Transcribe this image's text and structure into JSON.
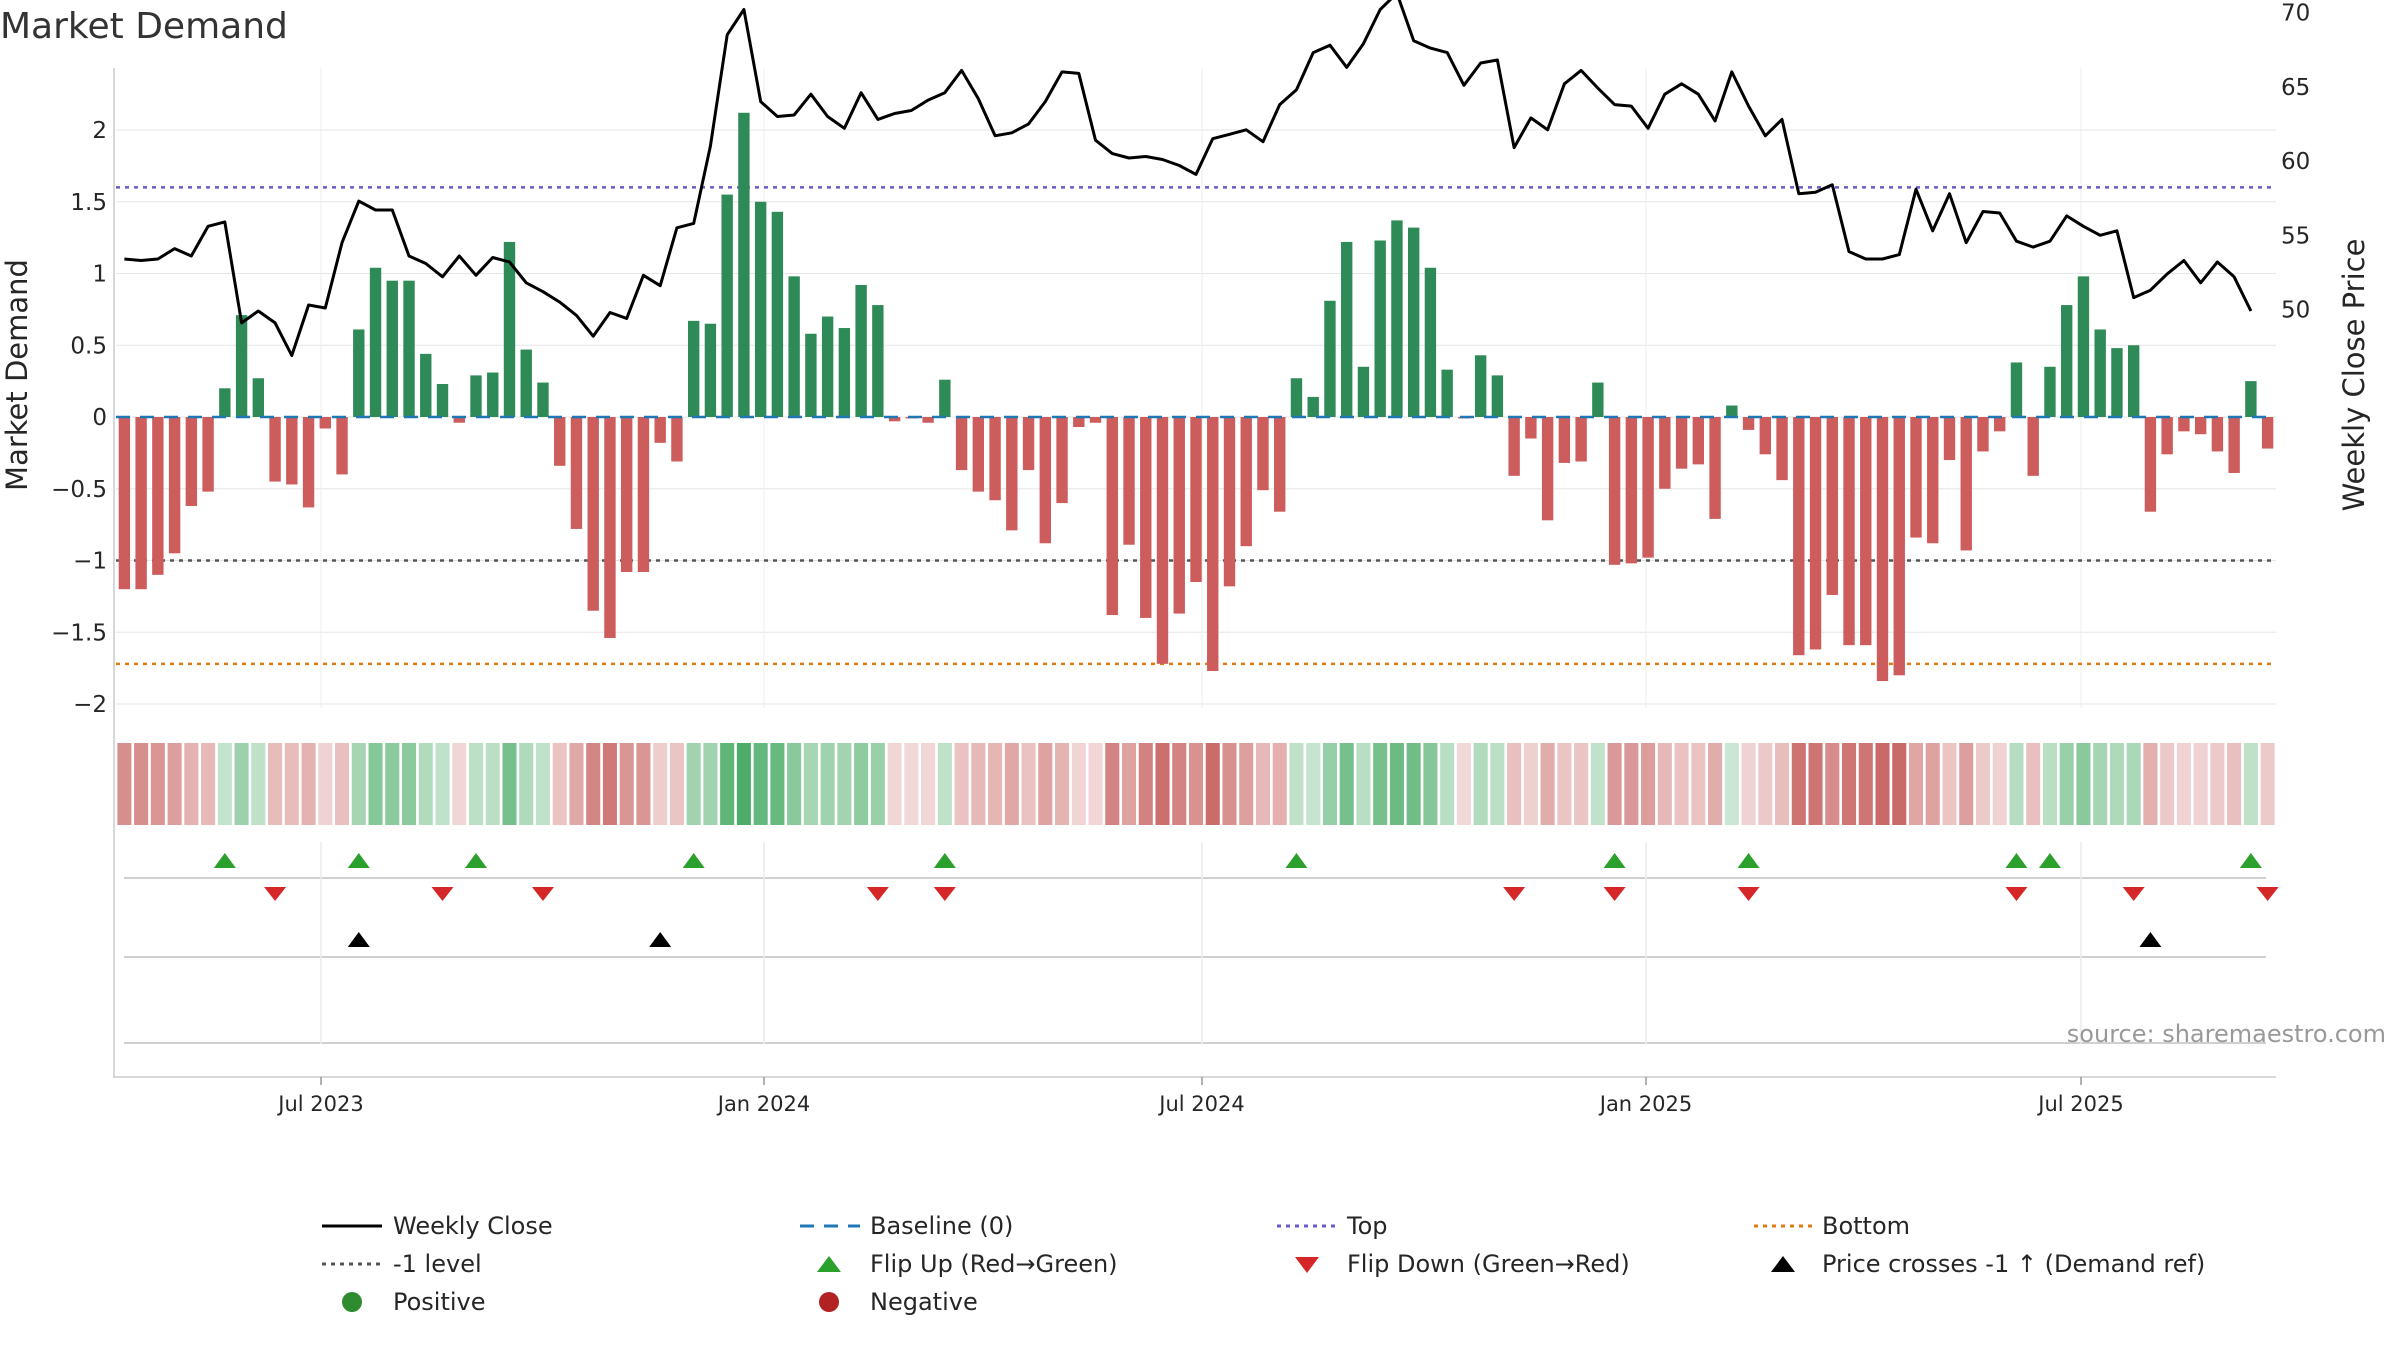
{
  "chart_data": {
    "type": "bar",
    "title": "Market Demand",
    "ylabel": "Market Demand",
    "y2label": "Weekly Close Price",
    "ylim": [
      -2.15,
      2.3
    ],
    "y2lim": [
      45.5,
      73.5
    ],
    "yticks": [
      "2",
      "1.5",
      "1",
      "0.5",
      "0",
      "−0.5",
      "−1",
      "−1.5",
      "−2"
    ],
    "y2ticks": [
      "70",
      "65",
      "60",
      "55",
      "50"
    ],
    "xticks": [
      "Jul 2023",
      "Jan 2024",
      "Jul 2024",
      "Jan 2025",
      "Jul 2025"
    ],
    "source": "source: sharemaestro.com",
    "colors": {
      "positive": "#2e8b57",
      "negative": "#cd5c5c",
      "close": "#000000",
      "baseline": "#1f77b4",
      "top": "#6a5acd",
      "minus1": "#555555",
      "bottom": "#e07b12",
      "flip_up": "#2ca02c",
      "flip_down": "#d62728",
      "cross": "#000000"
    },
    "reference_lines": {
      "top": 1.6,
      "minus1": -1.0,
      "bottom": -1.72
    },
    "demand": [
      -1.2,
      -1.2,
      -1.1,
      -0.95,
      -0.62,
      -0.52,
      0.2,
      0.71,
      0.27,
      -0.45,
      -0.47,
      -0.63,
      -0.08,
      -0.4,
      0.61,
      1.04,
      0.95,
      0.95,
      0.44,
      0.23,
      -0.04,
      0.29,
      0.31,
      1.22,
      0.47,
      0.24,
      -0.34,
      -0.78,
      -1.35,
      -1.54,
      -1.08,
      -1.08,
      -0.18,
      -0.31,
      0.67,
      0.65,
      1.55,
      2.12,
      1.5,
      1.43,
      0.98,
      0.58,
      0.7,
      0.62,
      0.92,
      0.78,
      -0.03,
      -0.01,
      -0.04,
      0.26,
      -0.37,
      -0.52,
      -0.58,
      -0.79,
      -0.37,
      -0.88,
      -0.6,
      -0.07,
      -0.04,
      -1.38,
      -0.89,
      -1.4,
      -1.72,
      -1.37,
      -1.15,
      -1.77,
      -1.18,
      -0.9,
      -0.51,
      -0.66,
      0.27,
      0.14,
      0.81,
      1.22,
      0.35,
      1.23,
      1.37,
      1.32,
      1.04,
      0.33,
      -0.01,
      0.43,
      0.29,
      -0.41,
      -0.15,
      -0.72,
      -0.32,
      -0.31,
      0.24,
      -1.03,
      -1.02,
      -0.98,
      -0.5,
      -0.36,
      -0.33,
      -0.71,
      0.08,
      -0.09,
      -0.26,
      -0.44,
      -1.66,
      -1.62,
      -1.24,
      -1.59,
      -1.59,
      -1.84,
      -1.8,
      -0.84,
      -0.88,
      -0.3,
      -0.93,
      -0.24,
      -0.1,
      0.38,
      -0.41,
      0.35,
      0.78,
      0.98,
      0.61,
      0.48,
      0.5,
      -0.66,
      -0.26,
      -0.1,
      -0.12,
      -0.24,
      -0.39,
      0.25,
      -0.22
    ],
    "close": [
      53.4,
      53.3,
      53.4,
      54.1,
      53.6,
      55.6,
      55.9,
      49.1,
      49.9,
      49.1,
      46.9,
      50.3,
      50.1,
      54.5,
      57.3,
      56.7,
      56.7,
      53.6,
      53.1,
      52.2,
      53.6,
      52.3,
      53.5,
      53.2,
      51.8,
      51.2,
      50.5,
      49.6,
      48.2,
      49.8,
      49.4,
      52.3,
      51.6,
      55.5,
      55.8,
      61.0,
      68.5,
      70.2,
      64.0,
      63.0,
      63.1,
      64.5,
      63.0,
      62.2,
      64.6,
      62.8,
      63.2,
      63.4,
      64.1,
      64.6,
      66.1,
      64.2,
      61.7,
      61.9,
      62.5,
      64.0,
      66.0,
      65.9,
      61.4,
      60.5,
      60.2,
      60.3,
      60.1,
      59.7,
      59.1,
      61.5,
      61.8,
      62.1,
      61.3,
      63.8,
      64.8,
      67.3,
      67.8,
      66.3,
      67.9,
      70.2,
      71.3,
      68.1,
      67.6,
      67.3,
      65.1,
      66.6,
      66.8,
      60.9,
      62.9,
      62.1,
      65.2,
      66.1,
      64.9,
      63.8,
      63.7,
      62.2,
      64.5,
      65.2,
      64.5,
      62.7,
      66.0,
      63.7,
      61.7,
      62.8,
      57.8,
      57.9,
      58.4,
      53.9,
      53.4,
      53.4,
      53.7,
      58.1,
      55.3,
      57.8,
      54.5,
      56.6,
      56.5,
      54.6,
      54.2,
      54.6,
      56.3,
      55.6,
      55.0,
      55.3,
      50.8,
      51.3,
      52.4,
      53.3,
      51.8,
      53.2,
      52.2,
      49.9
    ],
    "flip_up_idx": [
      6,
      14,
      21,
      34,
      49,
      70,
      89,
      97,
      113,
      115,
      127
    ],
    "flip_down_idx": [
      9,
      19,
      25,
      45,
      49,
      83,
      89,
      97,
      113,
      120,
      128
    ],
    "cross_idx": [
      14,
      32,
      121
    ],
    "legend": [
      [
        "Weekly Close",
        "Baseline (0)",
        "Top",
        "Bottom"
      ],
      [
        "-1 level",
        "Flip Up (Red→Green)",
        "Flip Down (Green→Red)",
        "Price crosses -1 ↑ (Demand ref)"
      ],
      [
        "Positive",
        "Negative"
      ]
    ]
  }
}
